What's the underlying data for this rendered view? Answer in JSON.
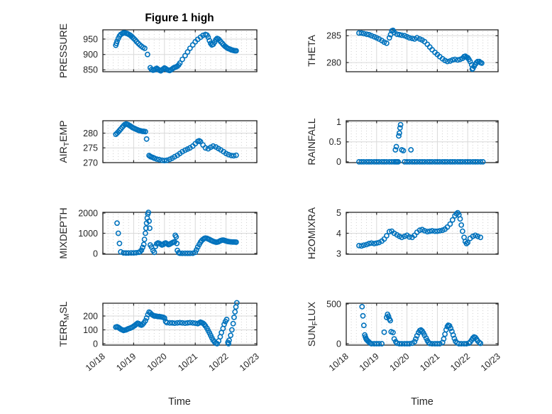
{
  "figure": {
    "title": "Figure 1 high",
    "background": "#ffffff",
    "marker_color": "#0072BD",
    "marker_shape": "open-circle",
    "axis_color": "#262626",
    "grid_color": "#d9d9d9",
    "minor_grid_color": "#cfcfcf",
    "grid": "on",
    "minor_grid": "on"
  },
  "x_axis": {
    "label": "Time",
    "tick_labels": [
      "10/18",
      "10/19",
      "10/20",
      "10/21",
      "10/22",
      "10/23"
    ],
    "tick_values": [
      0,
      1,
      2,
      3,
      4,
      5
    ],
    "lim": [
      0,
      5
    ],
    "units": "days since 10/18"
  },
  "chart_data": [
    {
      "type": "scatter",
      "name": "pressure",
      "ylabel": "PRESSURE",
      "yticks": [
        850,
        900,
        950
      ],
      "ytick_labels": [
        "850",
        "900",
        "950"
      ],
      "ylim": [
        844,
        980
      ],
      "x": [
        0.42,
        0.44,
        0.46,
        0.5,
        0.54,
        0.58,
        0.63,
        0.67,
        0.71,
        0.75,
        0.79,
        0.83,
        0.88,
        0.92,
        0.96,
        1.0,
        1.05,
        1.1,
        1.15,
        1.2,
        1.25,
        1.3,
        1.36,
        1.45,
        1.54,
        1.58,
        1.63,
        1.67,
        1.71,
        1.75,
        1.79,
        1.83,
        1.88,
        1.92,
        1.96,
        2.0,
        2.04,
        2.08,
        2.13,
        2.17,
        2.21,
        2.25,
        2.29,
        2.33,
        2.38,
        2.42,
        2.46,
        2.5,
        2.58,
        2.67,
        2.75,
        2.83,
        2.92,
        3.0,
        3.08,
        3.17,
        3.25,
        3.33,
        3.38,
        3.42,
        3.46,
        3.5,
        3.54,
        3.58,
        3.63,
        3.67,
        3.71,
        3.75,
        3.79,
        3.83,
        3.88,
        3.92,
        3.96,
        4.0,
        4.04,
        4.08,
        4.13,
        4.17,
        4.21,
        4.25,
        4.29,
        4.33
      ],
      "y": [
        930,
        936,
        943,
        952,
        960,
        965,
        968,
        970,
        970,
        969,
        968,
        966,
        963,
        960,
        956,
        952,
        947,
        941,
        936,
        931,
        927,
        923,
        920,
        900,
        857,
        851,
        849,
        850,
        853,
        855,
        852,
        849,
        847,
        850,
        853,
        856,
        854,
        851,
        849,
        848,
        850,
        853,
        856,
        858,
        860,
        862,
        866,
        872,
        884,
        896,
        908,
        920,
        931,
        941,
        949,
        956,
        962,
        965,
        963,
        956,
        945,
        936,
        931,
        933,
        940,
        948,
        952,
        950,
        946,
        941,
        936,
        931,
        927,
        924,
        921,
        919,
        917,
        915,
        914,
        913,
        912,
        912
      ]
    },
    {
      "type": "scatter",
      "name": "theta",
      "ylabel": "THETA",
      "yticks": [
        280,
        285
      ],
      "ytick_labels": [
        "280",
        "285"
      ],
      "ylim": [
        278.3,
        286.1
      ],
      "x": [
        0.42,
        0.5,
        0.58,
        0.67,
        0.75,
        0.83,
        0.92,
        1.0,
        1.08,
        1.17,
        1.25,
        1.33,
        1.42,
        1.46,
        1.5,
        1.54,
        1.58,
        1.67,
        1.75,
        1.83,
        1.92,
        2.0,
        2.08,
        2.17,
        2.25,
        2.33,
        2.42,
        2.5,
        2.58,
        2.67,
        2.75,
        2.83,
        2.92,
        3.0,
        3.08,
        3.17,
        3.25,
        3.33,
        3.42,
        3.5,
        3.58,
        3.67,
        3.75,
        3.83,
        3.88,
        3.92,
        3.96,
        4.0,
        4.04,
        4.08,
        4.13,
        4.15,
        4.17,
        4.21,
        4.25,
        4.29,
        4.33,
        4.38,
        4.42,
        4.46
      ],
      "y": [
        285.5,
        285.5,
        285.4,
        285.3,
        285.2,
        285.0,
        284.8,
        284.6,
        284.4,
        284.1,
        283.8,
        283.6,
        284.6,
        285.2,
        285.9,
        286.0,
        285.6,
        285.3,
        285.2,
        285.1,
        285.0,
        284.8,
        284.6,
        284.5,
        284.4,
        284.6,
        284.4,
        284.2,
        283.9,
        283.4,
        282.9,
        282.4,
        281.9,
        281.5,
        281.1,
        280.7,
        280.4,
        280.2,
        280.3,
        280.5,
        280.6,
        280.5,
        280.6,
        280.8,
        281.1,
        281.2,
        281.0,
        280.9,
        280.6,
        280.2,
        279.6,
        278.8,
        278.9,
        279.3,
        279.7,
        280.0,
        280.2,
        280.2,
        280.0,
        279.9
      ]
    },
    {
      "type": "scatter",
      "name": "air-temp",
      "ylabel": "AIR_TEMP",
      "yticks": [
        270,
        275,
        280
      ],
      "ytick_labels": [
        "270",
        "275",
        "280"
      ],
      "ylim": [
        270,
        284.2
      ],
      "x": [
        0.42,
        0.46,
        0.5,
        0.54,
        0.58,
        0.63,
        0.67,
        0.71,
        0.75,
        0.79,
        0.83,
        0.88,
        0.92,
        0.96,
        1.0,
        1.04,
        1.08,
        1.13,
        1.17,
        1.21,
        1.25,
        1.29,
        1.33,
        1.38,
        1.42,
        1.5,
        1.54,
        1.58,
        1.63,
        1.67,
        1.75,
        1.83,
        1.92,
        2.0,
        2.08,
        2.17,
        2.25,
        2.33,
        2.42,
        2.5,
        2.58,
        2.67,
        2.75,
        2.83,
        2.92,
        3.0,
        3.08,
        3.13,
        3.17,
        3.25,
        3.33,
        3.42,
        3.5,
        3.58,
        3.67,
        3.75,
        3.83,
        3.92,
        4.0,
        4.08,
        4.17,
        4.25,
        4.33
      ],
      "y": [
        279.6,
        280.0,
        280.4,
        280.9,
        281.4,
        282.0,
        282.5,
        282.9,
        283.1,
        283.0,
        282.8,
        282.5,
        282.2,
        281.9,
        281.7,
        281.5,
        281.3,
        281.1,
        280.9,
        280.8,
        280.7,
        280.6,
        280.6,
        280.5,
        278.0,
        272.4,
        272.1,
        271.9,
        271.7,
        271.5,
        271.2,
        271.0,
        270.8,
        270.7,
        270.8,
        271.1,
        271.5,
        272.0,
        272.5,
        273.1,
        273.7,
        274.2,
        274.6,
        275.0,
        275.6,
        276.4,
        277.2,
        277.4,
        277.1,
        276.0,
        275.0,
        274.7,
        275.2,
        275.6,
        275.3,
        274.8,
        274.3,
        273.7,
        273.1,
        272.7,
        272.4,
        272.3,
        272.5
      ]
    },
    {
      "type": "scatter",
      "name": "rainfall",
      "ylabel": "RAINFALL",
      "yticks": [
        0,
        0.5,
        1
      ],
      "ytick_labels": [
        "0",
        "0.5",
        "1"
      ],
      "ylim": [
        -0.02,
        1.03
      ],
      "x": [
        0.42,
        0.5,
        0.58,
        0.67,
        0.75,
        0.83,
        0.92,
        1.0,
        1.08,
        1.17,
        1.25,
        1.33,
        1.42,
        1.5,
        1.58,
        1.62,
        1.63,
        1.65,
        1.67,
        1.71,
        1.73,
        1.75,
        1.77,
        1.79,
        1.83,
        1.88,
        1.92,
        2.0,
        2.08,
        2.13,
        2.17,
        2.25,
        2.33,
        2.42,
        2.5,
        2.58,
        2.67,
        2.75,
        2.83,
        2.92,
        3.0,
        3.08,
        3.17,
        3.25,
        3.33,
        3.42,
        3.5,
        3.58,
        3.67,
        3.75,
        3.83,
        3.92,
        4.0,
        4.08,
        4.17,
        4.25,
        4.33,
        4.42,
        4.5
      ],
      "y": [
        0,
        0,
        0,
        0,
        0,
        0,
        0,
        0,
        0,
        0,
        0,
        0,
        0,
        0,
        0,
        0.3,
        0,
        0.38,
        0,
        0,
        0.65,
        0.72,
        0.85,
        0.93,
        0.3,
        0.28,
        0,
        0,
        0,
        0.3,
        0,
        0,
        0,
        0,
        0,
        0,
        0,
        0,
        0,
        0,
        0,
        0,
        0,
        0,
        0,
        0,
        0,
        0,
        0,
        0,
        0,
        0,
        0,
        0,
        0,
        0,
        0,
        0,
        0
      ]
    },
    {
      "type": "scatter",
      "name": "mixdepth",
      "ylabel": "MIXDEPTH",
      "yticks": [
        0,
        1000,
        2000
      ],
      "ytick_labels": [
        "0",
        "1000",
        "2000"
      ],
      "ylim": [
        -35,
        2035
      ],
      "x": [
        0.46,
        0.5,
        0.54,
        0.58,
        0.67,
        0.75,
        0.83,
        0.92,
        1.0,
        1.08,
        1.17,
        1.21,
        1.25,
        1.29,
        1.33,
        1.35,
        1.38,
        1.4,
        1.42,
        1.44,
        1.46,
        1.48,
        1.5,
        1.52,
        1.54,
        1.58,
        1.63,
        1.67,
        1.71,
        1.75,
        1.79,
        1.83,
        1.88,
        1.92,
        1.96,
        2.0,
        2.04,
        2.08,
        2.13,
        2.17,
        2.21,
        2.25,
        2.29,
        2.33,
        2.35,
        2.38,
        2.4,
        2.42,
        2.46,
        2.5,
        2.58,
        2.67,
        2.75,
        2.83,
        2.92,
        3.0,
        3.04,
        3.08,
        3.13,
        3.17,
        3.21,
        3.25,
        3.29,
        3.33,
        3.38,
        3.42,
        3.46,
        3.5,
        3.54,
        3.58,
        3.63,
        3.67,
        3.71,
        3.75,
        3.79,
        3.83,
        3.88,
        3.92,
        3.96,
        4.0,
        4.04,
        4.08,
        4.13,
        4.17,
        4.21,
        4.25,
        4.29,
        4.33
      ],
      "y": [
        1500,
        1000,
        500,
        80,
        30,
        25,
        25,
        30,
        30,
        40,
        60,
        100,
        160,
        300,
        450,
        700,
        1000,
        1250,
        1500,
        1750,
        1950,
        2030,
        1600,
        1250,
        420,
        320,
        150,
        60,
        350,
        480,
        520,
        500,
        460,
        420,
        450,
        500,
        520,
        480,
        440,
        460,
        500,
        530,
        560,
        580,
        900,
        820,
        500,
        150,
        40,
        15,
        10,
        10,
        12,
        12,
        15,
        60,
        180,
        320,
        450,
        560,
        640,
        700,
        740,
        760,
        750,
        720,
        690,
        660,
        630,
        600,
        580,
        560,
        560,
        580,
        610,
        640,
        660,
        660,
        640,
        620,
        600,
        590,
        580,
        575,
        570,
        570,
        565,
        560
      ]
    },
    {
      "type": "scatter",
      "name": "h2omixra",
      "ylabel": "H2OMIXRA",
      "yticks": [
        3,
        4,
        5
      ],
      "ytick_labels": [
        "3",
        "4",
        "5"
      ],
      "ylim": [
        2.98,
        5.02
      ],
      "x": [
        0.42,
        0.5,
        0.58,
        0.67,
        0.75,
        0.83,
        0.92,
        1.0,
        1.08,
        1.17,
        1.25,
        1.33,
        1.42,
        1.5,
        1.58,
        1.67,
        1.75,
        1.83,
        1.92,
        2.0,
        2.08,
        2.17,
        2.25,
        2.33,
        2.42,
        2.5,
        2.58,
        2.67,
        2.75,
        2.83,
        2.92,
        3.0,
        3.08,
        3.17,
        3.25,
        3.33,
        3.42,
        3.5,
        3.58,
        3.63,
        3.67,
        3.71,
        3.75,
        3.79,
        3.83,
        3.88,
        3.92,
        3.96,
        4.0,
        4.08,
        4.17,
        4.25,
        4.33,
        4.42
      ],
      "y": [
        3.4,
        3.38,
        3.42,
        3.45,
        3.5,
        3.52,
        3.5,
        3.52,
        3.55,
        3.62,
        3.72,
        3.88,
        4.08,
        4.1,
        4.0,
        3.92,
        3.85,
        3.8,
        3.85,
        3.9,
        3.82,
        3.8,
        3.9,
        4.05,
        4.15,
        4.18,
        4.12,
        4.08,
        4.1,
        4.12,
        4.1,
        4.1,
        4.12,
        4.15,
        4.2,
        4.3,
        4.45,
        4.65,
        4.85,
        4.95,
        5.0,
        4.9,
        4.7,
        4.4,
        4.1,
        3.8,
        3.6,
        3.5,
        3.55,
        3.75,
        3.85,
        3.9,
        3.85,
        3.8
      ]
    },
    {
      "type": "scatter",
      "name": "terr-msl",
      "ylabel": "TERR_MSL",
      "yticks": [
        0,
        100,
        200
      ],
      "ytick_labels": [
        "0",
        "100",
        "200"
      ],
      "ylim": [
        -10,
        292
      ],
      "x": [
        0.42,
        0.46,
        0.5,
        0.54,
        0.58,
        0.63,
        0.67,
        0.71,
        0.75,
        0.79,
        0.83,
        0.88,
        0.92,
        0.96,
        1.0,
        1.04,
        1.08,
        1.13,
        1.17,
        1.21,
        1.25,
        1.29,
        1.33,
        1.38,
        1.42,
        1.46,
        1.5,
        1.54,
        1.58,
        1.63,
        1.67,
        1.71,
        1.75,
        1.79,
        1.83,
        1.88,
        1.92,
        1.96,
        2.0,
        2.04,
        2.08,
        2.17,
        2.25,
        2.33,
        2.42,
        2.5,
        2.58,
        2.67,
        2.75,
        2.83,
        2.92,
        3.0,
        3.08,
        3.13,
        3.17,
        3.21,
        3.25,
        3.29,
        3.33,
        3.38,
        3.42,
        3.46,
        3.5,
        3.54,
        3.58,
        3.63,
        3.67,
        3.71,
        3.76,
        3.81,
        3.85,
        3.9,
        3.94,
        3.98,
        4.02,
        4.06,
        4.08,
        4.1,
        4.15,
        4.19,
        4.23,
        4.26,
        4.29,
        4.32,
        4.35
      ],
      "y": [
        120,
        122,
        118,
        112,
        105,
        100,
        96,
        98,
        100,
        104,
        108,
        112,
        116,
        120,
        126,
        132,
        140,
        148,
        144,
        138,
        134,
        140,
        150,
        165,
        185,
        210,
        228,
        222,
        212,
        205,
        200,
        200,
        198,
        196,
        196,
        194,
        192,
        190,
        185,
        160,
        152,
        150,
        150,
        148,
        150,
        152,
        150,
        148,
        150,
        152,
        150,
        148,
        145,
        150,
        155,
        152,
        147,
        140,
        128,
        112,
        95,
        78,
        60,
        42,
        26,
        12,
        4,
        0,
        20,
        50,
        80,
        110,
        140,
        160,
        175,
        10,
        0,
        25,
        60,
        100,
        145,
        190,
        230,
        265,
        295
      ]
    },
    {
      "type": "scatter",
      "name": "sun-flux",
      "ylabel": "SUN_FLUX",
      "yticks": [
        0,
        500
      ],
      "ytick_labels": [
        "0",
        "500"
      ],
      "ylim": [
        -18,
        509
      ],
      "x": [
        0.52,
        0.55,
        0.58,
        0.61,
        0.63,
        0.65,
        0.67,
        0.71,
        0.75,
        0.79,
        0.83,
        0.92,
        1.0,
        1.08,
        1.17,
        1.25,
        1.33,
        1.36,
        1.39,
        1.42,
        1.45,
        1.48,
        1.54,
        1.58,
        1.63,
        1.67,
        1.75,
        1.83,
        1.92,
        2.0,
        2.08,
        2.17,
        2.25,
        2.29,
        2.33,
        2.38,
        2.42,
        2.46,
        2.5,
        2.54,
        2.58,
        2.63,
        2.67,
        2.71,
        2.75,
        2.83,
        2.92,
        3.0,
        3.08,
        3.17,
        3.21,
        3.25,
        3.29,
        3.33,
        3.36,
        3.4,
        3.44,
        3.48,
        3.52,
        3.56,
        3.6,
        3.65,
        3.71,
        3.79,
        3.88,
        3.96,
        4.04,
        4.08,
        4.13,
        4.17,
        4.21,
        4.25,
        4.29,
        4.33,
        4.38,
        4.42
      ],
      "y": [
        465,
        350,
        230,
        110,
        85,
        65,
        50,
        35,
        20,
        8,
        0,
        0,
        0,
        0,
        0,
        145,
        330,
        370,
        345,
        310,
        290,
        150,
        140,
        60,
        25,
        5,
        0,
        0,
        0,
        0,
        0,
        5,
        25,
        60,
        100,
        140,
        165,
        172,
        160,
        135,
        105,
        70,
        38,
        15,
        3,
        0,
        0,
        0,
        0,
        15,
        60,
        120,
        175,
        215,
        232,
        225,
        195,
        155,
        110,
        65,
        30,
        10,
        0,
        0,
        0,
        0,
        5,
        20,
        45,
        70,
        85,
        78,
        58,
        35,
        15,
        4
      ]
    }
  ]
}
